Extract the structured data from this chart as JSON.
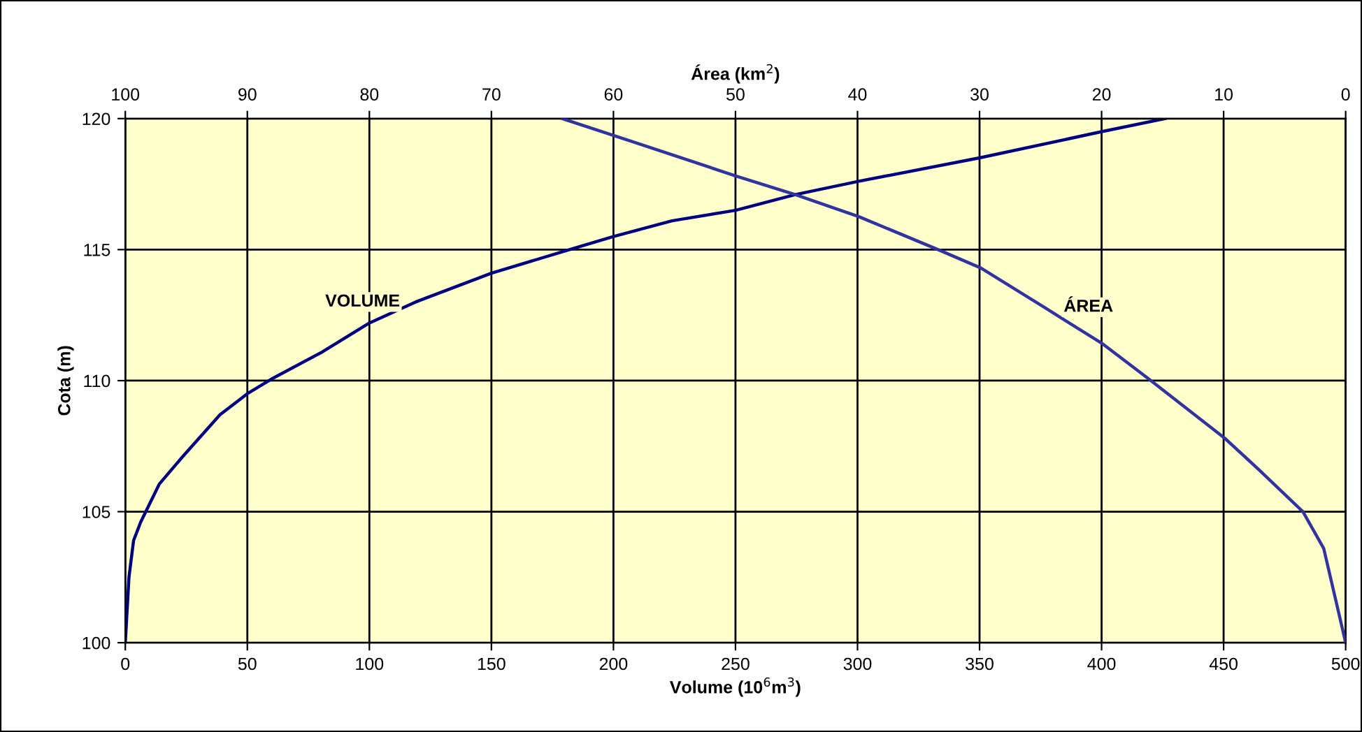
{
  "chart_data": {
    "type": "line",
    "xlabel": "Volume (10$^{6}$m$^{3}$)",
    "x2label": "Área (km$^{2}$)",
    "ylabel": "Cota (m)",
    "xlim": [
      0,
      500
    ],
    "xticks": [
      0,
      50,
      100,
      150,
      200,
      250,
      300,
      350,
      400,
      450,
      500
    ],
    "x2lim": [
      100,
      0
    ],
    "x2ticks": [
      100,
      90,
      80,
      70,
      60,
      50,
      40,
      30,
      20,
      10,
      0
    ],
    "ylim": [
      100,
      120
    ],
    "yticks": [
      100,
      105,
      110,
      115,
      120
    ],
    "grid": true,
    "legend": false,
    "marker": "none",
    "line_style": "solid",
    "series": [
      {
        "name": "VOLUME",
        "color": "#000080",
        "x": [
          0,
          1.5,
          3.4,
          6.3,
          13.9,
          23.5,
          38.8,
          50,
          59.7,
          80.8,
          100,
          118.9,
          150,
          182,
          200,
          224,
          250,
          274.5,
          300,
          350,
          400,
          426
        ],
        "values": [
          100,
          102.5,
          103.9,
          104.6,
          106.05,
          107.1,
          108.7,
          109.5,
          110.05,
          111.1,
          112.2,
          113,
          114.1,
          115,
          115.5,
          116.1,
          116.5,
          117.1,
          117.6,
          118.5,
          119.5,
          120
        ]
      },
      {
        "name": "ÁREA",
        "color": "#3333a0",
        "axis": "x2",
        "x": [
          0,
          0.8,
          1.8,
          3.5,
          7.1,
          9.9,
          16.1,
          19.9,
          24.7,
          29.9,
          33.4,
          39.9,
          45.1,
          49.9,
          58.3,
          64.2
        ],
        "values": [
          100,
          101.6,
          103.6,
          105,
          106.6,
          107.8,
          110.05,
          111.4,
          112.8,
          114.3,
          115,
          116.26,
          117.1,
          117.8,
          119.1,
          120
        ]
      }
    ]
  }
}
